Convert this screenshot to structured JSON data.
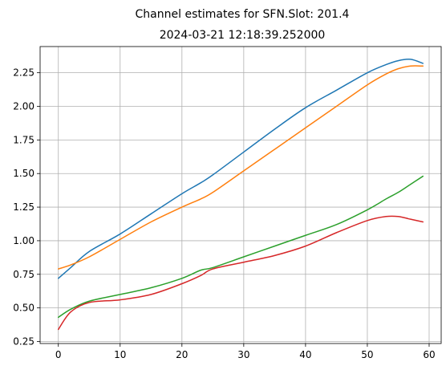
{
  "chart_data": {
    "type": "line",
    "title": "Channel estimates for SFN.Slot: 201.4",
    "subtitle": "2024-03-21 12:18:39.252000",
    "xlabel": "",
    "ylabel": "",
    "xlim": [
      -2.95,
      61.95
    ],
    "ylim": [
      0.235,
      2.445
    ],
    "xticks": [
      0,
      10,
      20,
      30,
      40,
      50,
      60
    ],
    "xtick_labels": [
      "0",
      "10",
      "20",
      "30",
      "40",
      "50",
      "60"
    ],
    "yticks": [
      0.25,
      0.5,
      0.75,
      1.0,
      1.25,
      1.5,
      1.75,
      2.0,
      2.25
    ],
    "ytick_labels": [
      "0.25",
      "0.50",
      "0.75",
      "1.00",
      "1.25",
      "1.50",
      "1.75",
      "2.00",
      "2.25"
    ],
    "grid": true,
    "legend": "none",
    "x": [
      0,
      2,
      5,
      10,
      15,
      20,
      23,
      25,
      30,
      35,
      40,
      45,
      50,
      53,
      55,
      57,
      59
    ],
    "series": [
      {
        "color": "#1f77b4",
        "values": [
          0.72,
          0.8,
          0.92,
          1.05,
          1.2,
          1.35,
          1.43,
          1.49,
          1.66,
          1.83,
          1.99,
          2.12,
          2.25,
          2.31,
          2.34,
          2.35,
          2.32
        ]
      },
      {
        "color": "#ff7f0e",
        "values": [
          0.79,
          0.82,
          0.88,
          1.01,
          1.14,
          1.25,
          1.31,
          1.36,
          1.52,
          1.68,
          1.84,
          2.0,
          2.16,
          2.24,
          2.28,
          2.3,
          2.3
        ]
      },
      {
        "color": "#2ca02c",
        "values": [
          0.43,
          0.49,
          0.55,
          0.6,
          0.65,
          0.72,
          0.78,
          0.8,
          0.88,
          0.96,
          1.04,
          1.12,
          1.23,
          1.31,
          1.36,
          1.42,
          1.48
        ]
      },
      {
        "color": "#d62728",
        "values": [
          0.34,
          0.47,
          0.54,
          0.56,
          0.6,
          0.68,
          0.74,
          0.79,
          0.84,
          0.89,
          0.96,
          1.06,
          1.15,
          1.18,
          1.18,
          1.16,
          1.14
        ]
      }
    ]
  }
}
